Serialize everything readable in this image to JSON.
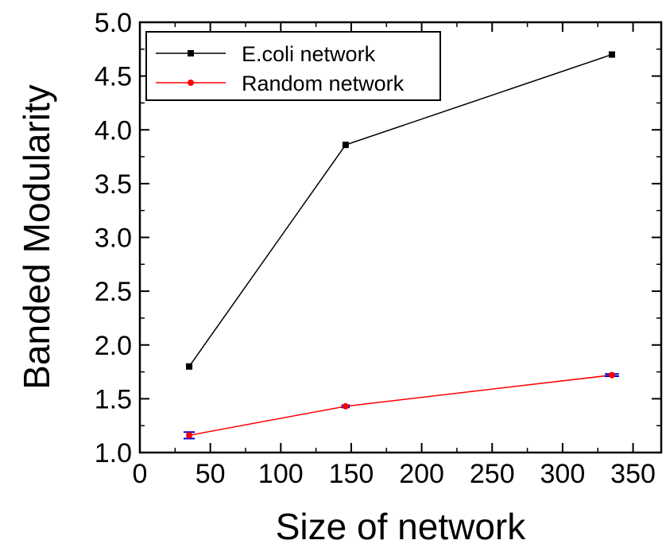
{
  "chart_data": {
    "type": "line",
    "title": "",
    "xlabel": "Size of network",
    "ylabel": "Banded Modularity",
    "xlim": [
      0,
      370
    ],
    "ylim": [
      1.0,
      5.0
    ],
    "xticks": [
      0,
      50,
      100,
      150,
      200,
      250,
      300,
      350
    ],
    "yticks": [
      1.0,
      1.5,
      2.0,
      2.5,
      3.0,
      3.5,
      4.0,
      4.5,
      5.0
    ],
    "xtick_labels": [
      "0",
      "50",
      "100",
      "150",
      "200",
      "250",
      "300",
      "350"
    ],
    "ytick_labels": [
      "1.0",
      "1.5",
      "2.0",
      "2.5",
      "3.0",
      "3.5",
      "4.0",
      "4.5",
      "5.0"
    ],
    "grid": false,
    "legend_position": "top-left",
    "series": [
      {
        "name": "E.coli network",
        "color": "#000000",
        "marker": "square",
        "x": [
          35,
          146,
          335
        ],
        "y": [
          1.8,
          3.86,
          4.7
        ]
      },
      {
        "name": "Random network",
        "color": "#ff0000",
        "marker": "circle",
        "error_bar_color": "#0000cc",
        "x": [
          35,
          146,
          335
        ],
        "y": [
          1.16,
          1.43,
          1.72
        ],
        "yerr": [
          0.03,
          0.01,
          0.01
        ],
        "xerr": [
          4,
          3,
          5
        ]
      }
    ]
  }
}
